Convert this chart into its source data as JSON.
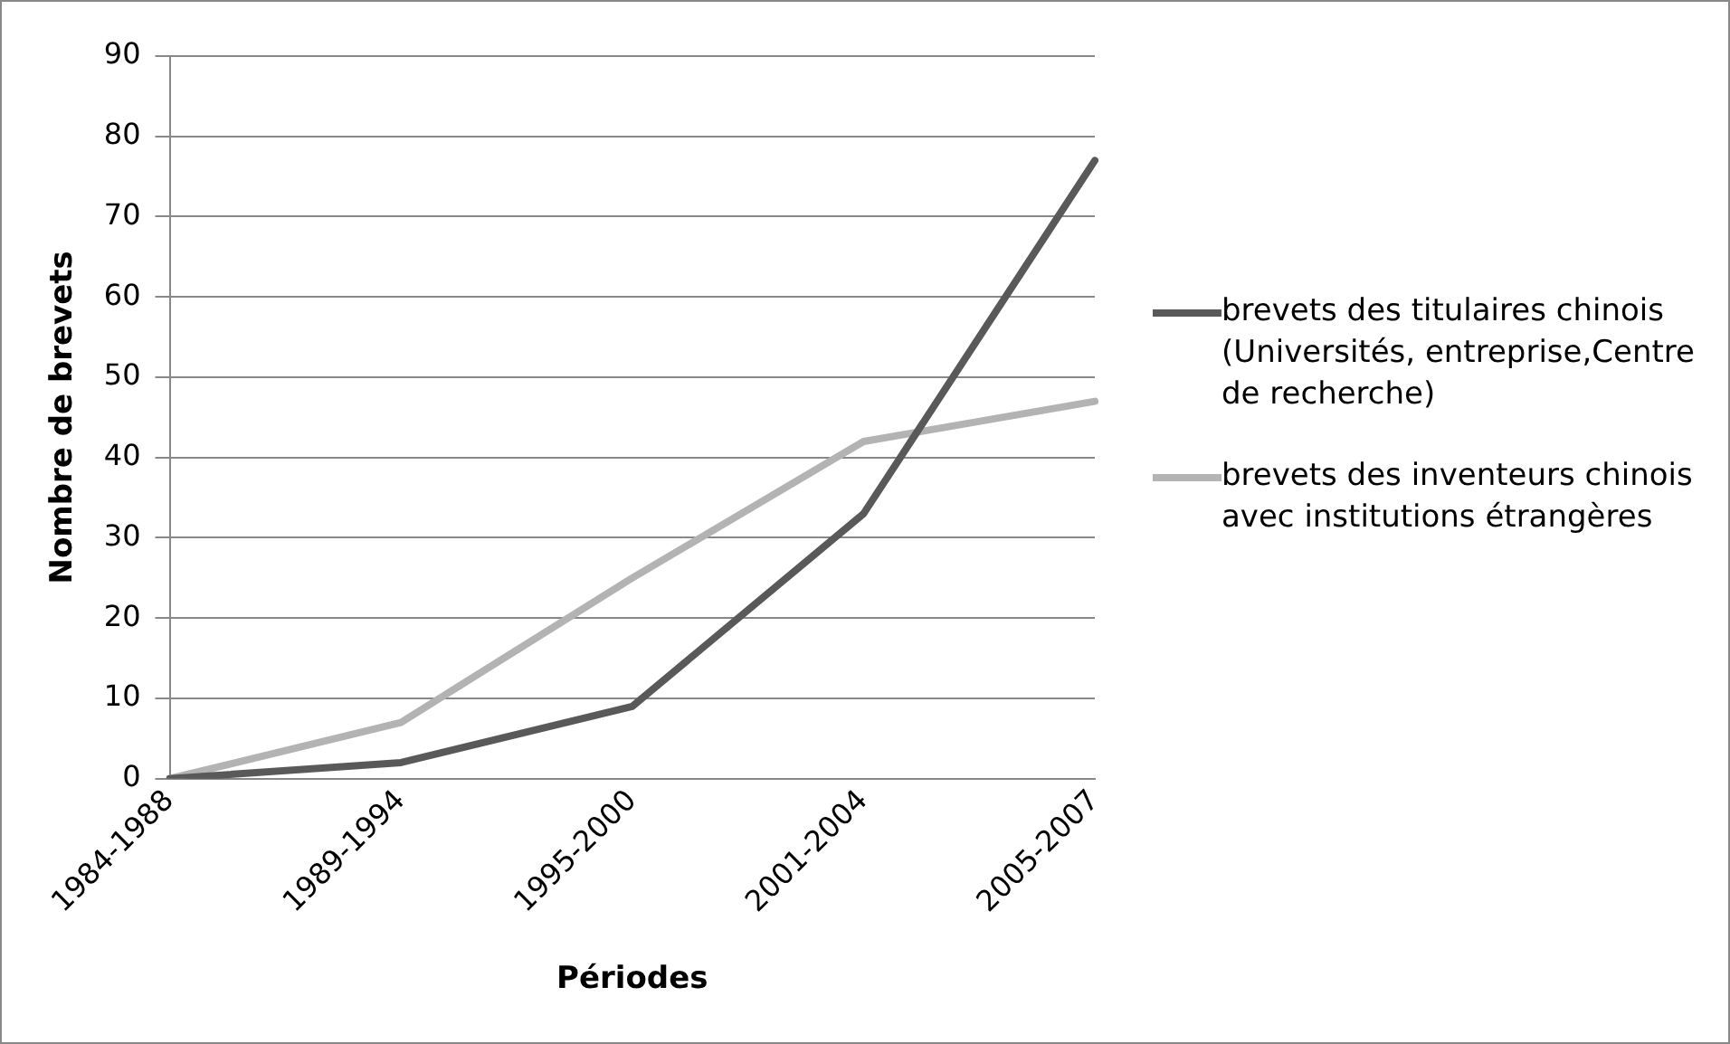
{
  "chart_data": {
    "type": "line",
    "xlabel": "Périodes",
    "ylabel": "Nombre de brevets",
    "categories": [
      "1984-1988",
      "1989-1994",
      "1995-2000",
      "2001-2004",
      "2005-2007"
    ],
    "series": [
      {
        "name": "brevets des titulaires chinois (Universités, entreprise,Centre de recherche)",
        "color": "#595959",
        "values": [
          0,
          2,
          9,
          33,
          77
        ]
      },
      {
        "name": "brevets des inventeurs chinois avec institutions étrangères",
        "color": "#b3b3b3",
        "values": [
          0,
          7,
          25,
          42,
          47
        ]
      }
    ],
    "ylim": [
      0,
      90
    ],
    "yticks": [
      0,
      10,
      20,
      30,
      40,
      50,
      60,
      70,
      80,
      90
    ],
    "grid": "y",
    "legend": "right",
    "marker": "none",
    "line_style": "solid"
  }
}
